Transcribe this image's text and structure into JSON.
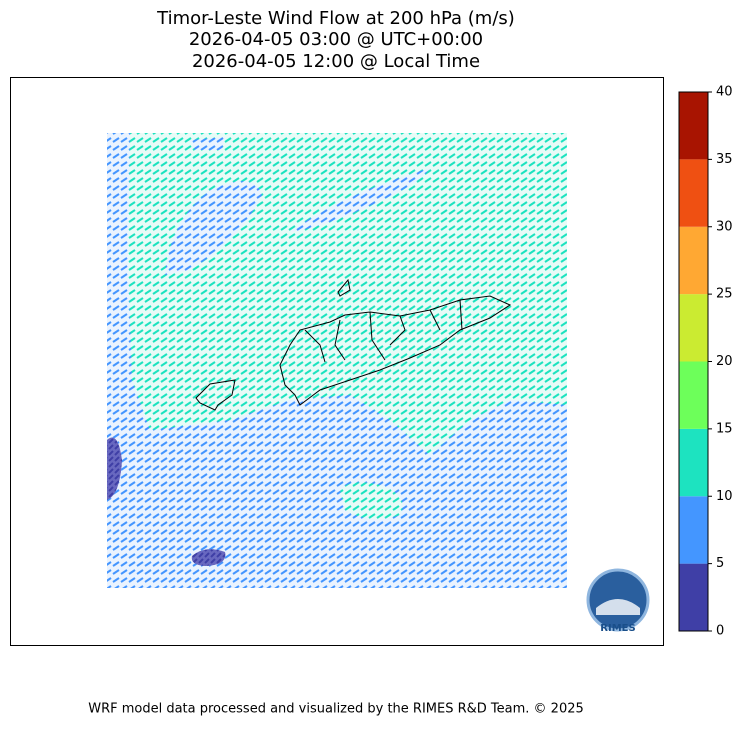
{
  "title": [
    "Timor-Leste Wind Flow at 200 hPa (m/s)",
    "2026-04-05 03:00 @ UTC+00:00",
    "2026-04-05 12:00 @ Local Time"
  ],
  "colorbar": {
    "ticks": [
      0,
      5,
      10,
      15,
      20,
      25,
      30,
      35,
      40
    ],
    "colors": [
      "#3f3fa6",
      "#4496ff",
      "#1de3c0",
      "#6dff5a",
      "#cbeb31",
      "#ffa833",
      "#ef5012",
      "#a81401"
    ]
  },
  "logo_text": "RIMES",
  "footer": "WRF model data processed and visualized by the RIMES R&D Team. © 2025"
}
